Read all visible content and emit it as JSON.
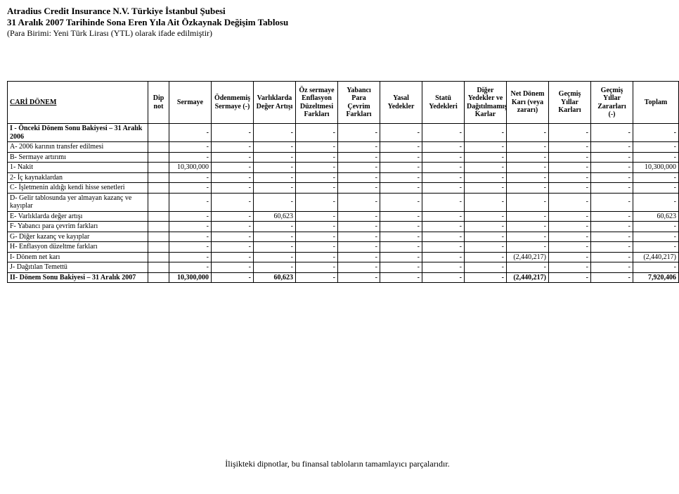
{
  "header": {
    "company": "Atradius Credit Insurance N.V. Türkiye İstanbul Şubesi",
    "title": "31 Aralık 2007 Tarihinde Sona Eren Yıla Ait Özkaynak Değişim Tablosu",
    "currency": "(Para Birimi: Yeni Türk Lirası (YTL) olarak ifade edilmiştir)"
  },
  "section": "CARİ DÖNEM",
  "columns": [
    "Dip not",
    "Sermaye",
    "Ödenmemiş Sermaye (-)",
    "Varlıklarda Değer Artışı",
    "Öz sermaye Enflasyon Düzeltmesi Farkları",
    "Yabancı Para Çevrim Farkları",
    "Yasal Yedekler",
    "Statü Yedekleri",
    "Diğer Yedekler ve Dağıtılmamış Karlar",
    "Net Dönem Karı (veya zararı)",
    "Geçmiş Yıllar Karları",
    "Geçmiş Yıllar Zararları (-)",
    "Toplam"
  ],
  "rows": [
    {
      "label": "I  -  Önceki Dönem Sonu Bakiyesi – 31 Aralık 2006",
      "bold": true,
      "cells": [
        "",
        "-",
        "-",
        "-",
        "-",
        "-",
        "-",
        "-",
        "-",
        "-",
        "-",
        "-",
        "-"
      ]
    },
    {
      "label": "A- 2006 karının transfer edilmesi",
      "bold": false,
      "cells": [
        "",
        "-",
        "-",
        "-",
        "-",
        "-",
        "-",
        "-",
        "-",
        "-",
        "-",
        "-",
        "-"
      ]
    },
    {
      "label": "B- Sermaye artırımı",
      "bold": false,
      "cells": [
        "",
        "-",
        "-",
        "-",
        "-",
        "-",
        "-",
        "-",
        "-",
        "-",
        "-",
        "-",
        "-"
      ]
    },
    {
      "label": "1- Nakit",
      "bold": false,
      "cells": [
        "",
        "10,300,000",
        "-",
        "-",
        "-",
        "-",
        "-",
        "-",
        "-",
        "-",
        "-",
        "-",
        "10,300,000"
      ]
    },
    {
      "label": "2- İç kaynaklardan",
      "bold": false,
      "cells": [
        "",
        "-",
        "-",
        "-",
        "-",
        "-",
        "-",
        "-",
        "-",
        "-",
        "-",
        "-",
        "-"
      ]
    },
    {
      "label": "C- İşletmenin aldığı kendi hisse senetleri",
      "bold": false,
      "cells": [
        "",
        "-",
        "-",
        "-",
        "-",
        "-",
        "-",
        "-",
        "-",
        "-",
        "-",
        "-",
        "-"
      ]
    },
    {
      "label": "D- Gelir tablosunda yer almayan kazanç ve kayıplar",
      "bold": false,
      "cells": [
        "",
        "-",
        "-",
        "-",
        "-",
        "-",
        "-",
        "-",
        "-",
        "-",
        "-",
        "-",
        "-"
      ]
    },
    {
      "label": "E- Varlıklarda değer artışı",
      "bold": false,
      "cells": [
        "",
        "-",
        "-",
        "60,623",
        "-",
        "-",
        "-",
        "-",
        "-",
        "-",
        "-",
        "-",
        "60,623"
      ]
    },
    {
      "label": "F- Yabancı para çevrim farkları",
      "bold": false,
      "cells": [
        "",
        "-",
        "-",
        "-",
        "-",
        "-",
        "-",
        "-",
        "-",
        "-",
        "-",
        "-",
        "-"
      ]
    },
    {
      "label": "G- Diğer kazanç ve kayıplar",
      "bold": false,
      "cells": [
        "",
        "-",
        "-",
        "-",
        "-",
        "-",
        "-",
        "-",
        "-",
        "-",
        "-",
        "-",
        "-"
      ]
    },
    {
      "label": "H- Enflasyon düzeltme farkları",
      "bold": false,
      "cells": [
        "",
        "-",
        "-",
        "-",
        "-",
        "-",
        "-",
        "-",
        "-",
        "-",
        "-",
        "-",
        "-"
      ]
    },
    {
      "label": "I- Dönem net karı",
      "bold": false,
      "cells": [
        "",
        "-",
        "-",
        "-",
        "-",
        "-",
        "-",
        "-",
        "-",
        "(2,440,217)",
        "-",
        "-",
        "(2,440,217)"
      ]
    },
    {
      "label": "J-  Dağıtılan Temettü",
      "bold": false,
      "cells": [
        "",
        "-",
        "-",
        "-",
        "-",
        "-",
        "-",
        "-",
        "-",
        "-",
        "-",
        "-",
        "-"
      ]
    },
    {
      "label": "II- Dönem Sonu Bakiyesi – 31 Aralık 2007",
      "bold": true,
      "cells": [
        "",
        "10,300,000",
        "-",
        "60,623",
        "-",
        "-",
        "-",
        "-",
        "-",
        "(2,440,217)",
        "-",
        "-",
        "7,920,406"
      ]
    }
  ],
  "footer": "İlişikteki dipnotlar, bu finansal tabloların tamamlayıcı parçalarıdır."
}
